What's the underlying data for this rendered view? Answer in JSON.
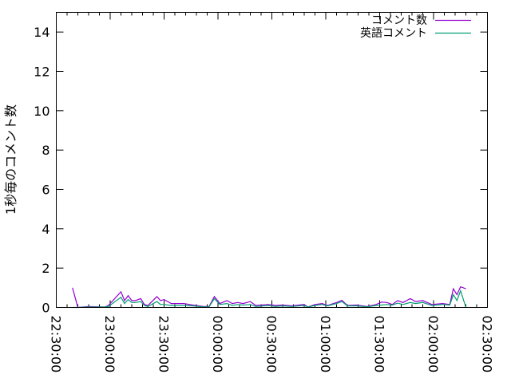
{
  "chart_data": {
    "type": "line",
    "title": "",
    "xlabel": "",
    "ylabel": "1秒毎のコメント数",
    "xlim": [
      "22:30:00",
      "02:30:00"
    ],
    "ylim": [
      0,
      15
    ],
    "x_ticks": [
      "22:30:00",
      "23:00:00",
      "23:30:00",
      "00:00:00",
      "00:30:00",
      "01:00:00",
      "01:30:00",
      "02:00:00",
      "02:30:00"
    ],
    "y_ticks": [
      "0",
      "2",
      "4",
      "6",
      "8",
      "10",
      "12",
      "14"
    ],
    "grid": false,
    "legend_position": "top-right",
    "x": [
      "22:39",
      "22:42",
      "22:48",
      "22:57",
      "22:59",
      "23:06",
      "23:08",
      "23:10",
      "23:12",
      "23:14",
      "23:17",
      "23:19",
      "23:21",
      "23:26",
      "23:28",
      "23:30",
      "23:34",
      "23:41",
      "23:46",
      "23:52",
      "23:55",
      "23:58",
      "00:01",
      "00:05",
      "00:08",
      "00:11",
      "00:14",
      "00:18",
      "00:21",
      "00:28",
      "00:32",
      "00:36",
      "00:41",
      "00:48",
      "00:50",
      "00:54",
      "00:58",
      "01:01",
      "01:06",
      "01:09",
      "01:12",
      "01:17",
      "01:23",
      "01:28",
      "01:31",
      "01:34",
      "01:37",
      "01:40",
      "01:43",
      "01:47",
      "01:50",
      "01:54",
      "01:59",
      "02:05",
      "02:09",
      "02:11",
      "02:13",
      "02:15",
      "02:18"
    ],
    "series": [
      {
        "name": "コメント数",
        "color": "#9400d3",
        "values": [
          1.0,
          0,
          0.05,
          0.02,
          0.1,
          0.8,
          0.35,
          0.6,
          0.35,
          0.35,
          0.45,
          0.15,
          0.1,
          0.55,
          0.35,
          0.4,
          0.2,
          0.2,
          0.12,
          0.05,
          0.05,
          0.55,
          0.2,
          0.35,
          0.2,
          0.25,
          0.2,
          0.3,
          0.1,
          0.15,
          0.1,
          0.12,
          0.08,
          0.15,
          0.02,
          0.15,
          0.2,
          0.1,
          0.25,
          0.36,
          0.1,
          0.12,
          0.05,
          0.15,
          0.27,
          0.25,
          0.15,
          0.35,
          0.25,
          0.45,
          0.3,
          0.35,
          0.15,
          0.2,
          0.15,
          0.95,
          0.65,
          1.05,
          0.95
        ]
      },
      {
        "name": "英語コメント",
        "color": "#009e73",
        "values": [
          0,
          0,
          0.02,
          0.02,
          0.05,
          0.52,
          0.2,
          0.4,
          0.25,
          0.25,
          0.3,
          0.1,
          0.05,
          0.3,
          0.15,
          0.15,
          0.1,
          0.1,
          0.08,
          0.03,
          0.03,
          0.45,
          0.15,
          0.2,
          0.1,
          0.15,
          0.12,
          0.15,
          0.05,
          0.1,
          0.05,
          0.08,
          0.05,
          0.1,
          0.02,
          0.1,
          0.15,
          0.08,
          0.2,
          0.3,
          0.08,
          0.08,
          0.03,
          0.1,
          0.12,
          0.15,
          0.12,
          0.22,
          0.15,
          0.25,
          0.2,
          0.25,
          0.1,
          0.15,
          0.12,
          0.65,
          0.35,
          0.85,
          0
        ]
      }
    ]
  }
}
